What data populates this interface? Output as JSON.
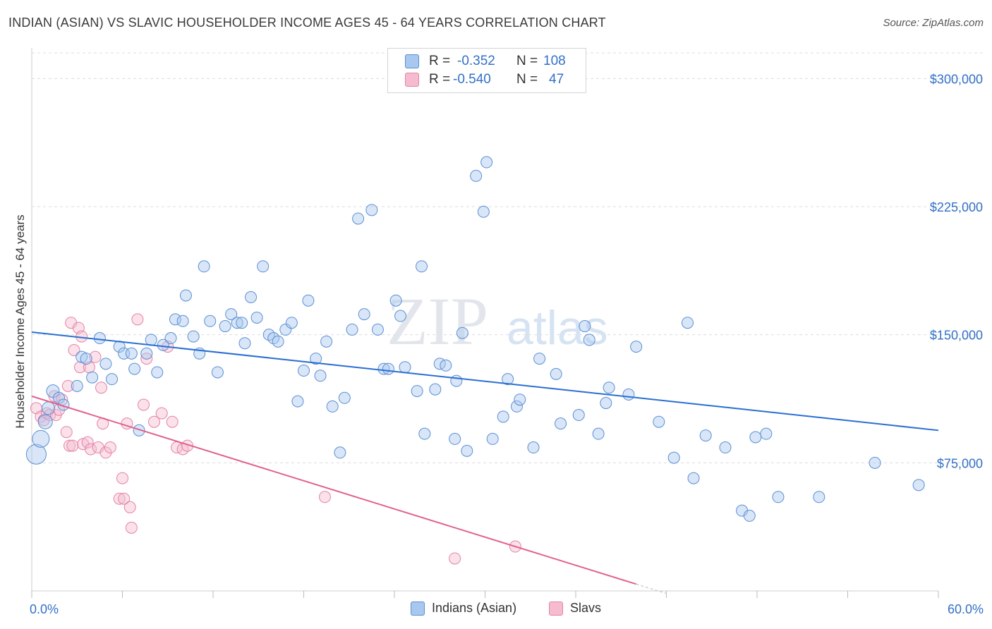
{
  "title": "INDIAN (ASIAN) VS SLAVIC HOUSEHOLDER INCOME AGES 45 - 64 YEARS CORRELATION CHART",
  "source": "Source: ZipAtlas.com",
  "watermark": {
    "zip": "ZIP",
    "atlas": "atlas"
  },
  "colors": {
    "blue_fill": "#a9c8ef",
    "blue_stroke": "#5b8fd4",
    "blue_line": "#2a6fd1",
    "pink_fill": "#f5bcd0",
    "pink_stroke": "#e583a6",
    "pink_line": "#e0618f",
    "accent_text": "#3370c8",
    "grid": "#dcdcdc"
  },
  "stats": {
    "rows": [
      {
        "r_label": "R =",
        "r_value": "-0.352",
        "n_label": "N =",
        "n_value": "108"
      },
      {
        "r_label": "R =",
        "r_value": "-0.540",
        "n_label": "N =",
        "n_value": "47"
      }
    ]
  },
  "legend": {
    "items": [
      "Indians (Asian)",
      "Slavs"
    ]
  },
  "chart_data": {
    "type": "scatter",
    "title": "INDIAN (ASIAN) VS SLAVIC HOUSEHOLDER INCOME AGES 45 - 64 YEARS CORRELATION CHART",
    "xlabel": "",
    "ylabel": "Householder Income Ages 45 - 64 years",
    "xlim": [
      0,
      60
    ],
    "ylim": [
      0,
      315000
    ],
    "x_tick_labels": [
      "0.0%",
      "60.0%"
    ],
    "y_ticks": [
      75000,
      150000,
      225000,
      300000
    ],
    "y_tick_labels": [
      "$75,000",
      "$150,000",
      "$225,000",
      "$300,000"
    ],
    "grid": true,
    "legend_position": "bottom",
    "series": [
      {
        "name": "Indians (Asian)",
        "trend": {
          "x": [
            0,
            60
          ],
          "y": [
            151500,
            94000
          ]
        },
        "points": [
          [
            0.3,
            80000,
            14
          ],
          [
            0.6,
            89000,
            12
          ],
          [
            0.9,
            99000,
            10
          ],
          [
            1.1,
            107000,
            9
          ],
          [
            1.4,
            117000,
            9
          ],
          [
            1.8,
            113000,
            8
          ],
          [
            2.1,
            109000,
            8
          ],
          [
            3.0,
            120000,
            8
          ],
          [
            3.3,
            137000,
            8
          ],
          [
            3.6,
            136000,
            8
          ],
          [
            4.0,
            125000,
            8
          ],
          [
            4.5,
            148000,
            8
          ],
          [
            4.9,
            133000,
            8
          ],
          [
            5.3,
            124000,
            8
          ],
          [
            5.8,
            143000,
            8
          ],
          [
            6.1,
            139000,
            8
          ],
          [
            6.6,
            139000,
            8
          ],
          [
            6.8,
            130000,
            8
          ],
          [
            7.1,
            94000,
            8
          ],
          [
            7.6,
            139000,
            8
          ],
          [
            7.9,
            147000,
            8
          ],
          [
            8.3,
            128000,
            8
          ],
          [
            8.7,
            144000,
            8
          ],
          [
            9.2,
            148000,
            8
          ],
          [
            9.5,
            159000,
            8
          ],
          [
            10.0,
            158000,
            8
          ],
          [
            10.2,
            173000,
            8
          ],
          [
            10.7,
            149000,
            8
          ],
          [
            11.1,
            139000,
            8
          ],
          [
            11.4,
            190000,
            8
          ],
          [
            11.8,
            158000,
            8
          ],
          [
            12.3,
            128000,
            8
          ],
          [
            12.8,
            155000,
            8
          ],
          [
            13.2,
            162000,
            8
          ],
          [
            13.6,
            157000,
            8
          ],
          [
            13.9,
            157000,
            8
          ],
          [
            14.1,
            145000,
            8
          ],
          [
            14.5,
            172000,
            8
          ],
          [
            14.9,
            160000,
            8
          ],
          [
            15.3,
            190000,
            8
          ],
          [
            15.7,
            150000,
            8
          ],
          [
            16.0,
            148000,
            8
          ],
          [
            16.3,
            146000,
            8
          ],
          [
            16.8,
            153000,
            8
          ],
          [
            17.2,
            157000,
            8
          ],
          [
            17.6,
            111000,
            8
          ],
          [
            18.0,
            129000,
            8
          ],
          [
            18.3,
            170000,
            8
          ],
          [
            18.8,
            136000,
            8
          ],
          [
            19.1,
            126000,
            8
          ],
          [
            19.5,
            146000,
            8
          ],
          [
            19.9,
            108000,
            8
          ],
          [
            20.4,
            81000,
            8
          ],
          [
            20.7,
            113000,
            8
          ],
          [
            21.2,
            153000,
            8
          ],
          [
            21.6,
            218000,
            8
          ],
          [
            22.0,
            162000,
            8
          ],
          [
            22.5,
            223000,
            8
          ],
          [
            22.9,
            153000,
            8
          ],
          [
            23.3,
            130000,
            8
          ],
          [
            23.6,
            130000,
            8
          ],
          [
            24.1,
            170000,
            8
          ],
          [
            24.4,
            161000,
            8
          ],
          [
            24.7,
            131000,
            8
          ],
          [
            25.5,
            117000,
            8
          ],
          [
            25.8,
            190000,
            8
          ],
          [
            26.0,
            92000,
            8
          ],
          [
            26.7,
            118000,
            8
          ],
          [
            27.0,
            133000,
            8
          ],
          [
            27.4,
            132000,
            8
          ],
          [
            28.0,
            89000,
            8
          ],
          [
            28.1,
            123000,
            8
          ],
          [
            28.5,
            151000,
            8
          ],
          [
            28.8,
            82000,
            8
          ],
          [
            29.4,
            243000,
            8
          ],
          [
            29.9,
            222000,
            8
          ],
          [
            30.1,
            251000,
            8
          ],
          [
            30.5,
            89000,
            8
          ],
          [
            31.2,
            102000,
            8
          ],
          [
            31.5,
            124000,
            8
          ],
          [
            32.1,
            108000,
            8
          ],
          [
            32.3,
            112000,
            8
          ],
          [
            33.2,
            84000,
            8
          ],
          [
            33.6,
            136000,
            8
          ],
          [
            34.7,
            127000,
            8
          ],
          [
            36.2,
            103000,
            8
          ],
          [
            36.6,
            155000,
            8
          ],
          [
            36.9,
            147000,
            8
          ],
          [
            37.5,
            92000,
            8
          ],
          [
            38.0,
            110000,
            8
          ],
          [
            38.2,
            119000,
            8
          ],
          [
            39.5,
            115000,
            8
          ],
          [
            40.0,
            143000,
            8
          ],
          [
            41.5,
            99000,
            8
          ],
          [
            42.5,
            78000,
            8
          ],
          [
            43.4,
            157000,
            8
          ],
          [
            43.8,
            66000,
            8
          ],
          [
            44.6,
            91000,
            8
          ],
          [
            45.9,
            84000,
            8
          ],
          [
            47.0,
            47000,
            8
          ],
          [
            47.5,
            44000,
            8
          ],
          [
            47.9,
            90000,
            8
          ],
          [
            48.6,
            92000,
            8
          ],
          [
            49.4,
            55000,
            8
          ],
          [
            52.1,
            55000,
            8
          ],
          [
            55.8,
            75000,
            8
          ],
          [
            58.7,
            62000,
            8
          ],
          [
            35.0,
            98000,
            8
          ]
        ]
      },
      {
        "name": "Slavs",
        "trend": {
          "x": [
            0,
            40
          ],
          "y": [
            114000,
            4000
          ]
        },
        "trend_dashed_extension": {
          "x": [
            40,
            42
          ],
          "y": [
            4000,
            -1500
          ]
        },
        "points": [
          [
            0.3,
            107000,
            8
          ],
          [
            0.6,
            102000,
            8
          ],
          [
            0.8,
            100000,
            8
          ],
          [
            1.0,
            104000,
            8
          ],
          [
            1.2,
            103000,
            8
          ],
          [
            1.5,
            114000,
            8
          ],
          [
            1.6,
            103000,
            8
          ],
          [
            1.8,
            106000,
            8
          ],
          [
            2.0,
            112000,
            8
          ],
          [
            2.3,
            93000,
            8
          ],
          [
            2.5,
            85000,
            8
          ],
          [
            2.6,
            157000,
            8
          ],
          [
            2.7,
            85000,
            8
          ],
          [
            2.8,
            141000,
            8
          ],
          [
            3.1,
            154000,
            8
          ],
          [
            3.2,
            131000,
            8
          ],
          [
            3.3,
            149000,
            8
          ],
          [
            3.4,
            86000,
            8
          ],
          [
            3.7,
            87000,
            8
          ],
          [
            3.8,
            131000,
            8
          ],
          [
            3.9,
            83000,
            8
          ],
          [
            4.2,
            137000,
            8
          ],
          [
            4.4,
            84000,
            8
          ],
          [
            4.6,
            119000,
            8
          ],
          [
            4.7,
            98000,
            8
          ],
          [
            4.9,
            81000,
            8
          ],
          [
            5.2,
            84000,
            8
          ],
          [
            5.8,
            54000,
            8
          ],
          [
            6.0,
            66000,
            8
          ],
          [
            6.1,
            54000,
            8
          ],
          [
            6.3,
            98000,
            8
          ],
          [
            6.5,
            49000,
            8
          ],
          [
            6.6,
            37000,
            8
          ],
          [
            7.0,
            159000,
            8
          ],
          [
            7.4,
            109000,
            8
          ],
          [
            7.6,
            136000,
            8
          ],
          [
            8.1,
            99000,
            8
          ],
          [
            8.6,
            104000,
            8
          ],
          [
            9.0,
            143000,
            8
          ],
          [
            9.3,
            99000,
            8
          ],
          [
            9.6,
            84000,
            8
          ],
          [
            10.0,
            83000,
            8
          ],
          [
            10.3,
            85000,
            8
          ],
          [
            19.4,
            55000,
            8
          ],
          [
            28.0,
            19000,
            8
          ],
          [
            32.0,
            26000,
            8
          ],
          [
            2.4,
            120000,
            8
          ]
        ]
      }
    ]
  }
}
